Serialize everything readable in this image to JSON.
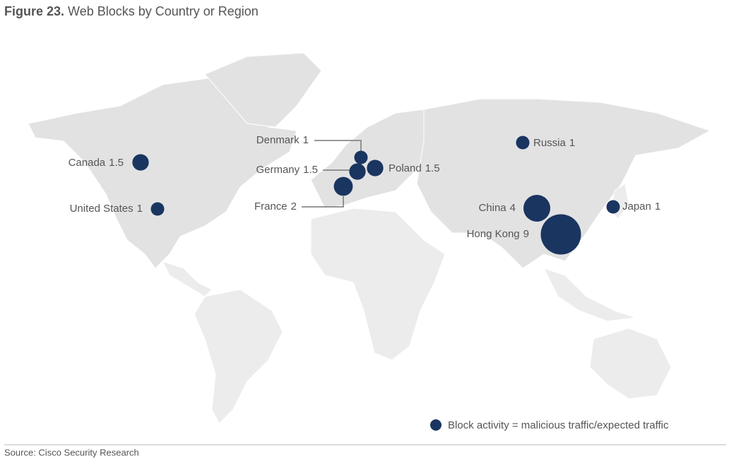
{
  "chart_data": {
    "type": "bubble-map",
    "title_prefix": "Figure 23.",
    "title": "Web Blocks by Country or Region",
    "categories": [
      "Canada",
      "United States",
      "Denmark",
      "Germany",
      "Poland",
      "France",
      "Russia",
      "China",
      "Hong Kong",
      "Japan"
    ],
    "values": [
      1.5,
      1,
      1,
      1.5,
      1.5,
      2,
      1,
      4,
      9,
      1
    ],
    "color": "#1a3560",
    "legend": "Block activity = malicious traffic/expected traffic",
    "source": "Source: Cisco Security Research"
  }
}
